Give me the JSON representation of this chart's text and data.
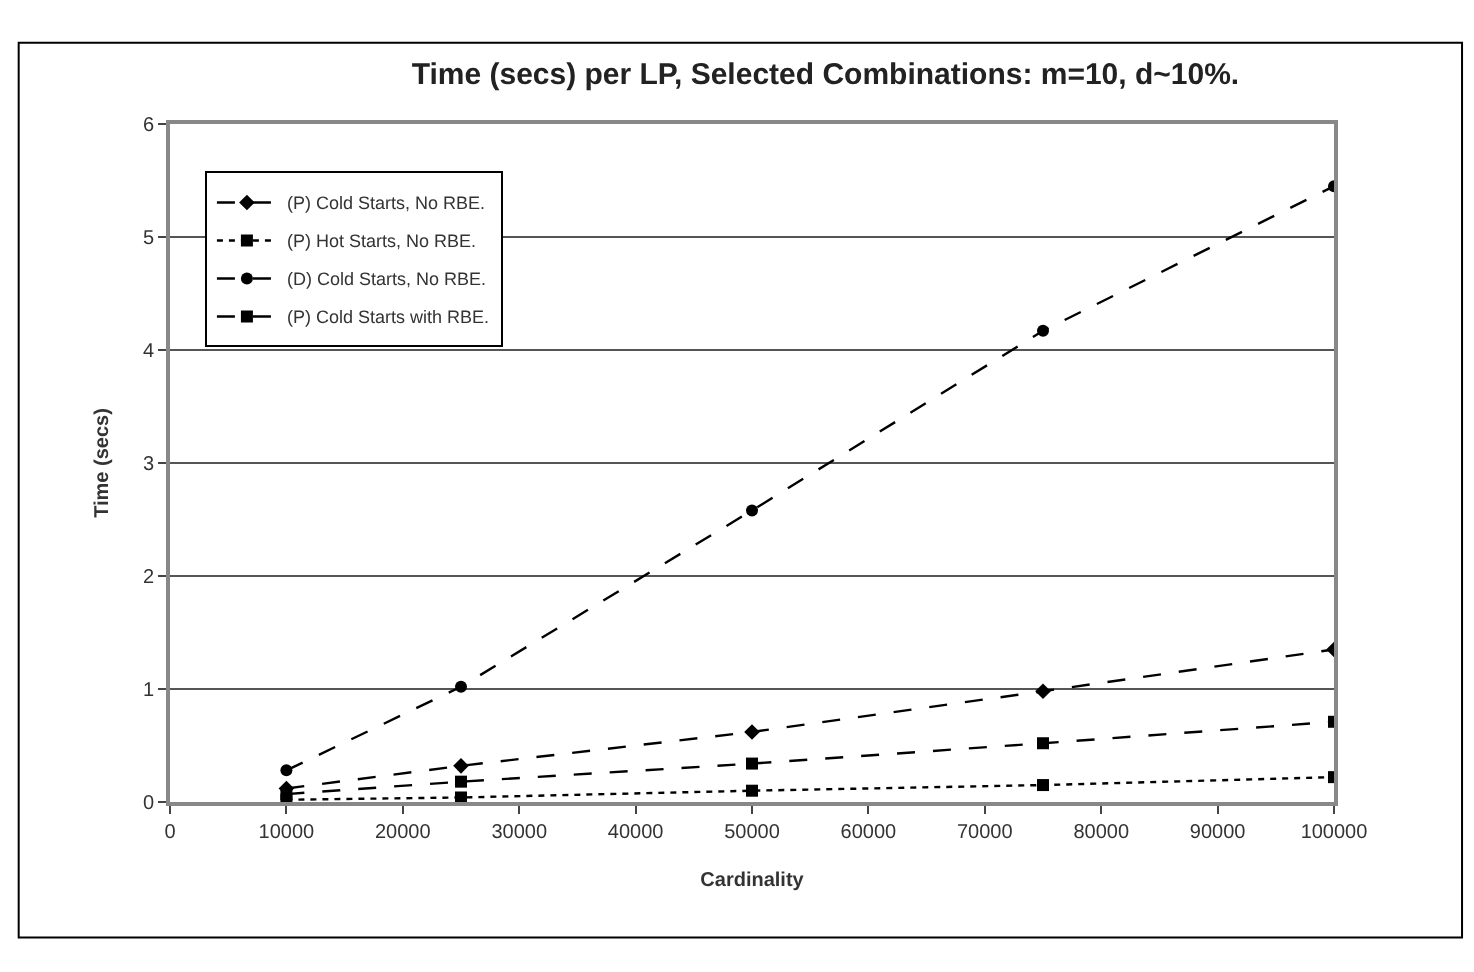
{
  "chart_data": {
    "type": "line",
    "title": "Time (secs) per LP, Selected Combinations: m=10, d~10%.",
    "xlabel": "Cardinality",
    "ylabel": "Time (secs)",
    "x": [
      10000,
      25000,
      50000,
      75000,
      100000
    ],
    "series": [
      {
        "name": "(P) Cold Starts, No RBE.",
        "color": "#000000",
        "marker": "diamond",
        "line_style": "dashed",
        "values": [
          0.12,
          0.32,
          0.62,
          0.98,
          1.35
        ]
      },
      {
        "name": "(P) Hot Starts, No RBE.",
        "color": "#000000",
        "marker": "square",
        "line_style": "dotted",
        "values": [
          0.02,
          0.04,
          0.1,
          0.15,
          0.22
        ]
      },
      {
        "name": "(D) Cold Starts, No RBE.",
        "color": "#000000",
        "marker": "circle",
        "line_style": "dashed",
        "values": [
          0.28,
          1.02,
          2.58,
          4.17,
          5.45
        ]
      },
      {
        "name": "(P) Cold Starts with RBE.",
        "color": "#000000",
        "marker": "square",
        "line_style": "dashed",
        "values": [
          0.07,
          0.18,
          0.34,
          0.52,
          0.71
        ]
      }
    ],
    "xlim": [
      0,
      100000
    ],
    "xticks": [
      0,
      10000,
      20000,
      30000,
      40000,
      50000,
      60000,
      70000,
      80000,
      90000,
      100000
    ],
    "ylim": [
      0,
      6
    ],
    "yticks": [
      0,
      1,
      2,
      3,
      4,
      5,
      6
    ],
    "grid": "y",
    "legend": "top left"
  }
}
